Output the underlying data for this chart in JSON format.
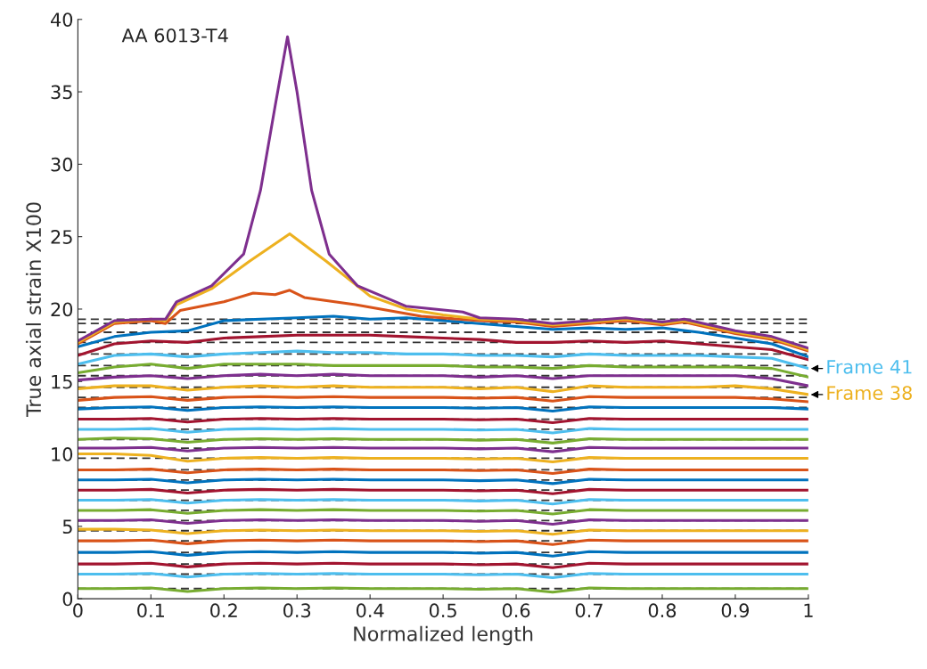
{
  "chart_data": {
    "type": "line",
    "xlabel": "Normalized length",
    "ylabel": "True axial strain X100",
    "annotations": [
      "AA 6013-T4"
    ],
    "x": [
      0,
      0.05,
      0.1,
      0.15,
      0.2,
      0.25,
      0.3,
      0.35,
      0.4,
      0.45,
      0.5,
      0.55,
      0.6,
      0.65,
      0.7,
      0.75,
      0.8,
      0.85,
      0.9,
      0.95,
      1
    ],
    "xlim": [
      0,
      1
    ],
    "xticks": [
      0,
      0.1,
      0.2,
      0.3,
      0.4,
      0.5,
      0.6,
      0.7,
      0.8,
      0.9,
      1
    ],
    "ylim": [
      0,
      40
    ],
    "yticks": [
      0,
      5,
      10,
      15,
      20,
      25,
      30,
      35,
      40
    ],
    "grid": false,
    "legend": false,
    "marker": "none",
    "line_style": "solid",
    "ref_lines": [
      {
        "axis": "y",
        "value": 0.7,
        "color": "#333333",
        "line_style": "dashed"
      },
      {
        "axis": "y",
        "value": 1.7,
        "color": "#333333",
        "line_style": "dashed"
      },
      {
        "axis": "y",
        "value": 2.4,
        "color": "#333333",
        "line_style": "dashed"
      },
      {
        "axis": "y",
        "value": 3.2,
        "color": "#333333",
        "line_style": "dashed"
      },
      {
        "axis": "y",
        "value": 4.0,
        "color": "#333333",
        "line_style": "dashed"
      },
      {
        "axis": "y",
        "value": 4.7,
        "color": "#333333",
        "line_style": "dashed"
      },
      {
        "axis": "y",
        "value": 5.4,
        "color": "#333333",
        "line_style": "dashed"
      },
      {
        "axis": "y",
        "value": 6.1,
        "color": "#333333",
        "line_style": "dashed"
      },
      {
        "axis": "y",
        "value": 6.8,
        "color": "#333333",
        "line_style": "dashed"
      },
      {
        "axis": "y",
        "value": 7.5,
        "color": "#333333",
        "line_style": "dashed"
      },
      {
        "axis": "y",
        "value": 8.2,
        "color": "#333333",
        "line_style": "dashed"
      },
      {
        "axis": "y",
        "value": 8.9,
        "color": "#333333",
        "line_style": "dashed"
      },
      {
        "axis": "y",
        "value": 9.7,
        "color": "#333333",
        "line_style": "dashed"
      },
      {
        "axis": "y",
        "value": 10.4,
        "color": "#333333",
        "line_style": "dashed"
      },
      {
        "axis": "y",
        "value": 11.0,
        "color": "#333333",
        "line_style": "dashed"
      },
      {
        "axis": "y",
        "value": 11.7,
        "color": "#333333",
        "line_style": "dashed"
      },
      {
        "axis": "y",
        "value": 12.4,
        "color": "#333333",
        "line_style": "dashed"
      },
      {
        "axis": "y",
        "value": 13.2,
        "color": "#333333",
        "line_style": "dashed"
      },
      {
        "axis": "y",
        "value": 13.9,
        "color": "#333333",
        "line_style": "dashed"
      },
      {
        "axis": "y",
        "value": 14.6,
        "color": "#333333",
        "line_style": "dashed"
      },
      {
        "axis": "y",
        "value": 15.4,
        "color": "#333333",
        "line_style": "dashed"
      },
      {
        "axis": "y",
        "value": 16.1,
        "color": "#333333",
        "line_style": "dashed"
      },
      {
        "axis": "y",
        "value": 16.9,
        "color": "#333333",
        "line_style": "dashed"
      },
      {
        "axis": "y",
        "value": 17.7,
        "color": "#333333",
        "line_style": "dashed"
      },
      {
        "axis": "y",
        "value": 18.4,
        "color": "#333333",
        "line_style": "dashed"
      },
      {
        "axis": "y",
        "value": 19.0,
        "color": "#333333",
        "line_style": "dashed"
      },
      {
        "axis": "y",
        "value": 19.3,
        "color": "#333333",
        "line_style": "dashed"
      }
    ],
    "series": [
      {
        "color": "#77AC30",
        "values": [
          0.7,
          0.7,
          0.75,
          0.5,
          0.7,
          0.75,
          0.7,
          0.75,
          0.7,
          0.7,
          0.7,
          0.65,
          0.7,
          0.45,
          0.75,
          0.7,
          0.7,
          0.7,
          0.7,
          0.7,
          0.7
        ]
      },
      {
        "color": "#4DBEEE",
        "values": [
          1.7,
          1.7,
          1.75,
          1.5,
          1.7,
          1.75,
          1.7,
          1.75,
          1.7,
          1.7,
          1.7,
          1.65,
          1.7,
          1.45,
          1.75,
          1.7,
          1.7,
          1.7,
          1.7,
          1.7,
          1.7
        ]
      },
      {
        "color": "#A2142F",
        "values": [
          2.4,
          2.4,
          2.45,
          2.2,
          2.4,
          2.45,
          2.4,
          2.45,
          2.4,
          2.4,
          2.4,
          2.35,
          2.4,
          2.15,
          2.45,
          2.4,
          2.4,
          2.4,
          2.4,
          2.4,
          2.4
        ]
      },
      {
        "color": "#0072BD",
        "values": [
          3.2,
          3.2,
          3.25,
          3.0,
          3.2,
          3.25,
          3.2,
          3.25,
          3.2,
          3.2,
          3.2,
          3.15,
          3.2,
          2.95,
          3.25,
          3.2,
          3.2,
          3.2,
          3.2,
          3.2,
          3.2
        ]
      },
      {
        "color": "#D95319",
        "values": [
          4.0,
          4.0,
          4.05,
          3.8,
          4.0,
          4.05,
          4.0,
          4.05,
          4.0,
          4.0,
          4.0,
          3.95,
          4.0,
          3.75,
          4.05,
          4.0,
          4.0,
          4.0,
          4.0,
          4.0,
          4.0
        ]
      },
      {
        "color": "#EDB120",
        "values": [
          4.8,
          4.8,
          4.75,
          4.5,
          4.7,
          4.75,
          4.7,
          4.75,
          4.7,
          4.7,
          4.7,
          4.65,
          4.7,
          4.45,
          4.75,
          4.7,
          4.7,
          4.7,
          4.7,
          4.7,
          4.7
        ]
      },
      {
        "color": "#7E2F8E",
        "values": [
          5.4,
          5.4,
          5.45,
          5.2,
          5.4,
          5.45,
          5.4,
          5.45,
          5.4,
          5.4,
          5.4,
          5.35,
          5.4,
          5.15,
          5.45,
          5.4,
          5.4,
          5.4,
          5.4,
          5.4,
          5.4
        ]
      },
      {
        "color": "#77AC30",
        "values": [
          6.1,
          6.1,
          6.15,
          5.9,
          6.1,
          6.15,
          6.1,
          6.15,
          6.1,
          6.1,
          6.1,
          6.05,
          6.1,
          5.85,
          6.15,
          6.1,
          6.1,
          6.1,
          6.1,
          6.1,
          6.1
        ]
      },
      {
        "color": "#4DBEEE",
        "values": [
          6.8,
          6.8,
          6.85,
          6.6,
          6.8,
          6.85,
          6.8,
          6.85,
          6.8,
          6.8,
          6.8,
          6.75,
          6.8,
          6.55,
          6.85,
          6.8,
          6.8,
          6.8,
          6.8,
          6.8,
          6.8
        ]
      },
      {
        "color": "#A2142F",
        "values": [
          7.5,
          7.5,
          7.55,
          7.3,
          7.5,
          7.55,
          7.5,
          7.55,
          7.5,
          7.5,
          7.5,
          7.45,
          7.5,
          7.25,
          7.55,
          7.5,
          7.5,
          7.5,
          7.5,
          7.5,
          7.5
        ]
      },
      {
        "color": "#0072BD",
        "values": [
          8.2,
          8.2,
          8.25,
          8.0,
          8.2,
          8.25,
          8.2,
          8.25,
          8.2,
          8.2,
          8.2,
          8.15,
          8.2,
          7.95,
          8.25,
          8.2,
          8.2,
          8.2,
          8.2,
          8.2,
          8.2
        ]
      },
      {
        "color": "#D95319",
        "values": [
          8.9,
          8.9,
          8.95,
          8.7,
          8.9,
          8.95,
          8.9,
          8.95,
          8.9,
          8.9,
          8.9,
          8.85,
          8.9,
          8.65,
          8.95,
          8.9,
          8.9,
          8.9,
          8.9,
          8.9,
          8.9
        ]
      },
      {
        "color": "#EDB120",
        "values": [
          10.0,
          10.0,
          9.9,
          9.5,
          9.7,
          9.75,
          9.7,
          9.75,
          9.7,
          9.7,
          9.7,
          9.65,
          9.7,
          9.45,
          9.75,
          9.7,
          9.7,
          9.7,
          9.7,
          9.7,
          9.7
        ]
      },
      {
        "color": "#7E2F8E",
        "values": [
          10.4,
          10.4,
          10.45,
          10.2,
          10.4,
          10.45,
          10.4,
          10.45,
          10.4,
          10.4,
          10.4,
          10.35,
          10.4,
          10.15,
          10.45,
          10.4,
          10.4,
          10.4,
          10.4,
          10.4,
          10.4
        ]
      },
      {
        "color": "#77AC30",
        "values": [
          11.0,
          11.1,
          11.05,
          10.8,
          11.0,
          11.05,
          11.0,
          11.05,
          11.0,
          11.0,
          11.0,
          10.95,
          11.0,
          10.75,
          11.05,
          11.0,
          11.0,
          11.0,
          11.0,
          11.0,
          11.0
        ]
      },
      {
        "color": "#4DBEEE",
        "values": [
          11.7,
          11.7,
          11.75,
          11.5,
          11.7,
          11.75,
          11.7,
          11.75,
          11.7,
          11.7,
          11.7,
          11.65,
          11.7,
          11.45,
          11.75,
          11.7,
          11.7,
          11.7,
          11.7,
          11.7,
          11.7
        ]
      },
      {
        "color": "#A2142F",
        "values": [
          12.4,
          12.4,
          12.45,
          12.2,
          12.4,
          12.45,
          12.4,
          12.45,
          12.4,
          12.4,
          12.4,
          12.35,
          12.4,
          12.15,
          12.45,
          12.4,
          12.4,
          12.4,
          12.4,
          12.4,
          12.4
        ]
      },
      {
        "color": "#0072BD",
        "values": [
          13.1,
          13.2,
          13.25,
          13.0,
          13.2,
          13.25,
          13.2,
          13.25,
          13.2,
          13.2,
          13.2,
          13.15,
          13.2,
          12.95,
          13.25,
          13.2,
          13.2,
          13.2,
          13.2,
          13.2,
          13.1
        ]
      },
      {
        "color": "#D95319",
        "values": [
          13.7,
          13.9,
          13.95,
          13.7,
          13.9,
          13.95,
          13.9,
          13.95,
          13.9,
          13.9,
          13.9,
          13.85,
          13.9,
          13.65,
          13.95,
          13.9,
          13.9,
          13.9,
          13.9,
          13.8,
          13.6
        ]
      },
      {
        "color": "#EDB120",
        "name": "Frame 38",
        "values": [
          14.5,
          14.7,
          14.7,
          14.4,
          14.6,
          14.7,
          14.6,
          14.7,
          14.6,
          14.6,
          14.6,
          14.5,
          14.6,
          14.3,
          14.7,
          14.6,
          14.6,
          14.6,
          14.7,
          14.5,
          14.1
        ]
      },
      {
        "color": "#7E2F8E",
        "values": [
          15.1,
          15.3,
          15.4,
          15.2,
          15.4,
          15.5,
          15.4,
          15.5,
          15.4,
          15.4,
          15.4,
          15.3,
          15.4,
          15.2,
          15.4,
          15.4,
          15.4,
          15.4,
          15.4,
          15.2,
          14.7
        ]
      },
      {
        "color": "#77AC30",
        "values": [
          15.6,
          16.0,
          16.2,
          15.9,
          16.2,
          16.2,
          16.2,
          16.1,
          16.1,
          16.1,
          16.1,
          16.0,
          16.0,
          15.9,
          16.1,
          16.0,
          16.0,
          16.0,
          16.0,
          15.9,
          15.3
        ]
      },
      {
        "color": "#4DBEEE",
        "name": "Frame 41",
        "values": [
          16.2,
          16.8,
          16.9,
          16.7,
          16.9,
          17.0,
          17.1,
          17.0,
          17.0,
          16.9,
          16.9,
          16.8,
          16.8,
          16.7,
          16.9,
          16.8,
          16.8,
          16.8,
          16.7,
          16.6,
          15.9
        ]
      },
      {
        "color": "#A2142F",
        "values": [
          16.8,
          17.6,
          17.8,
          17.7,
          18.0,
          18.1,
          18.2,
          18.2,
          18.2,
          18.1,
          18.0,
          17.9,
          17.7,
          17.7,
          17.8,
          17.7,
          17.8,
          17.6,
          17.4,
          17.2,
          16.5
        ]
      },
      {
        "color": "#0072BD",
        "values": [
          17.4,
          18.1,
          18.4,
          18.5,
          19.2,
          19.3,
          19.4,
          19.5,
          19.3,
          19.4,
          19.2,
          19.0,
          18.8,
          18.6,
          18.7,
          18.6,
          18.7,
          18.4,
          18.0,
          17.6,
          16.7
        ]
      },
      {
        "color": "#D95319",
        "x": [
          0,
          0.05,
          0.1,
          0.12,
          0.14,
          0.2,
          0.24,
          0.27,
          0.29,
          0.31,
          0.38,
          0.47,
          0.55,
          0.6,
          0.65,
          0.7,
          0.75,
          0.8,
          0.83,
          0.9,
          0.95,
          1
        ],
        "values": [
          17.6,
          19.0,
          19.2,
          19.0,
          19.9,
          20.5,
          21.1,
          21.0,
          21.3,
          20.8,
          20.3,
          19.5,
          19.2,
          19.1,
          18.8,
          19.0,
          19.2,
          18.9,
          19.1,
          18.3,
          17.9,
          17.1
        ]
      },
      {
        "color": "#EDB120",
        "x": [
          0,
          0.05,
          0.1,
          0.12,
          0.135,
          0.183,
          0.235,
          0.29,
          0.34,
          0.4,
          0.45,
          0.5,
          0.55,
          0.6,
          0.65,
          0.7,
          0.75,
          0.8,
          0.83,
          0.9,
          0.95,
          1
        ],
        "values": [
          17.7,
          19.1,
          19.3,
          19.2,
          20.3,
          21.4,
          23.3,
          25.2,
          23.3,
          20.9,
          20.0,
          19.6,
          19.3,
          19.2,
          18.9,
          19.1,
          19.3,
          19.0,
          19.2,
          18.4,
          18.0,
          17.2
        ]
      },
      {
        "color": "#7E2F8E",
        "x": [
          0,
          0.05,
          0.1,
          0.12,
          0.135,
          0.183,
          0.227,
          0.25,
          0.27,
          0.287,
          0.3,
          0.32,
          0.344,
          0.383,
          0.449,
          0.527,
          0.55,
          0.6,
          0.65,
          0.7,
          0.75,
          0.8,
          0.83,
          0.9,
          0.95,
          1
        ],
        "values": [
          17.8,
          19.2,
          19.3,
          19.3,
          20.5,
          21.6,
          23.8,
          28.2,
          34.0,
          38.8,
          35.0,
          28.2,
          23.8,
          21.6,
          20.2,
          19.8,
          19.4,
          19.3,
          19.0,
          19.2,
          19.4,
          19.1,
          19.3,
          18.5,
          18.1,
          17.3
        ]
      }
    ]
  }
}
